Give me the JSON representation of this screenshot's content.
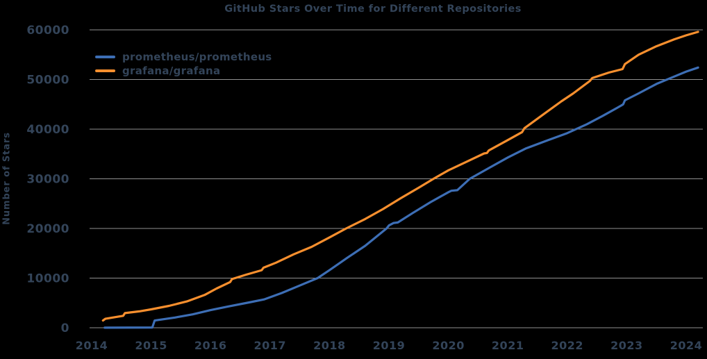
{
  "chart_data": {
    "type": "line",
    "title": "GitHub Stars Over Time for Different Repositories",
    "xlabel": "",
    "ylabel": "Number of Stars",
    "x_ticks": [
      2014,
      2015,
      2016,
      2017,
      2018,
      2019,
      2020,
      2021,
      2022,
      2023,
      2024
    ],
    "y_ticks": [
      0,
      10000,
      20000,
      30000,
      40000,
      50000,
      60000
    ],
    "xlim": [
      2013.97,
      2024.28
    ],
    "ylim": [
      0,
      60000
    ],
    "grid": "horizontal-only",
    "legend_position": "upper-left-inside",
    "background_color": "#000000",
    "text_color": "#334459",
    "gridline_color": "#919191",
    "series": [
      {
        "name": "prometheus/prometheus",
        "color": "#3d6eb5",
        "points": [
          [
            2014.22,
            20
          ],
          [
            2015.02,
            60
          ],
          [
            2015.06,
            1450
          ],
          [
            2015.4,
            2050
          ],
          [
            2015.7,
            2700
          ],
          [
            2016.0,
            3550
          ],
          [
            2016.3,
            4300
          ],
          [
            2016.65,
            5100
          ],
          [
            2016.9,
            5700
          ],
          [
            2017.2,
            7000
          ],
          [
            2017.5,
            8500
          ],
          [
            2017.8,
            10000
          ],
          [
            2018.0,
            11600
          ],
          [
            2018.3,
            14100
          ],
          [
            2018.6,
            16500
          ],
          [
            2018.96,
            20000
          ],
          [
            2019.0,
            20600
          ],
          [
            2019.08,
            21100
          ],
          [
            2019.15,
            21200
          ],
          [
            2019.4,
            23100
          ],
          [
            2019.7,
            25300
          ],
          [
            2020.0,
            27300
          ],
          [
            2020.05,
            27600
          ],
          [
            2020.15,
            27700
          ],
          [
            2020.36,
            30000
          ],
          [
            2020.7,
            32300
          ],
          [
            2021.0,
            34300
          ],
          [
            2021.3,
            36100
          ],
          [
            2021.66,
            37700
          ],
          [
            2022.0,
            39200
          ],
          [
            2022.33,
            41000
          ],
          [
            2022.6,
            42700
          ],
          [
            2022.9,
            44700
          ],
          [
            2022.94,
            45000
          ],
          [
            2022.97,
            45800
          ],
          [
            2023.2,
            47200
          ],
          [
            2023.5,
            49100
          ],
          [
            2023.8,
            50600
          ],
          [
            2024.0,
            51600
          ],
          [
            2024.2,
            52400
          ]
        ]
      },
      {
        "name": "grafana/grafana",
        "color": "#f78f2e",
        "points": [
          [
            2014.19,
            1450
          ],
          [
            2014.23,
            1800
          ],
          [
            2014.45,
            2250
          ],
          [
            2014.53,
            2400
          ],
          [
            2014.56,
            2950
          ],
          [
            2014.8,
            3300
          ],
          [
            2015.0,
            3700
          ],
          [
            2015.3,
            4400
          ],
          [
            2015.6,
            5300
          ],
          [
            2015.9,
            6600
          ],
          [
            2016.1,
            7900
          ],
          [
            2016.33,
            9200
          ],
          [
            2016.36,
            9800
          ],
          [
            2016.6,
            10700
          ],
          [
            2016.86,
            11600
          ],
          [
            2016.89,
            12100
          ],
          [
            2017.1,
            13100
          ],
          [
            2017.4,
            14800
          ],
          [
            2017.7,
            16300
          ],
          [
            2018.0,
            18200
          ],
          [
            2018.28,
            20000
          ],
          [
            2018.6,
            21900
          ],
          [
            2018.9,
            23900
          ],
          [
            2019.2,
            26100
          ],
          [
            2019.5,
            28200
          ],
          [
            2019.75,
            30000
          ],
          [
            2020.0,
            31700
          ],
          [
            2020.3,
            33400
          ],
          [
            2020.6,
            35100
          ],
          [
            2020.65,
            35200
          ],
          [
            2020.68,
            35700
          ],
          [
            2021.0,
            37800
          ],
          [
            2021.24,
            39400
          ],
          [
            2021.28,
            40200
          ],
          [
            2021.6,
            43000
          ],
          [
            2021.9,
            45600
          ],
          [
            2022.1,
            47200
          ],
          [
            2022.38,
            49700
          ],
          [
            2022.42,
            50300
          ],
          [
            2022.7,
            51400
          ],
          [
            2022.93,
            52100
          ],
          [
            2022.97,
            53100
          ],
          [
            2023.2,
            55000
          ],
          [
            2023.5,
            56700
          ],
          [
            2023.8,
            58100
          ],
          [
            2024.0,
            58900
          ],
          [
            2024.2,
            59600
          ]
        ]
      }
    ]
  }
}
